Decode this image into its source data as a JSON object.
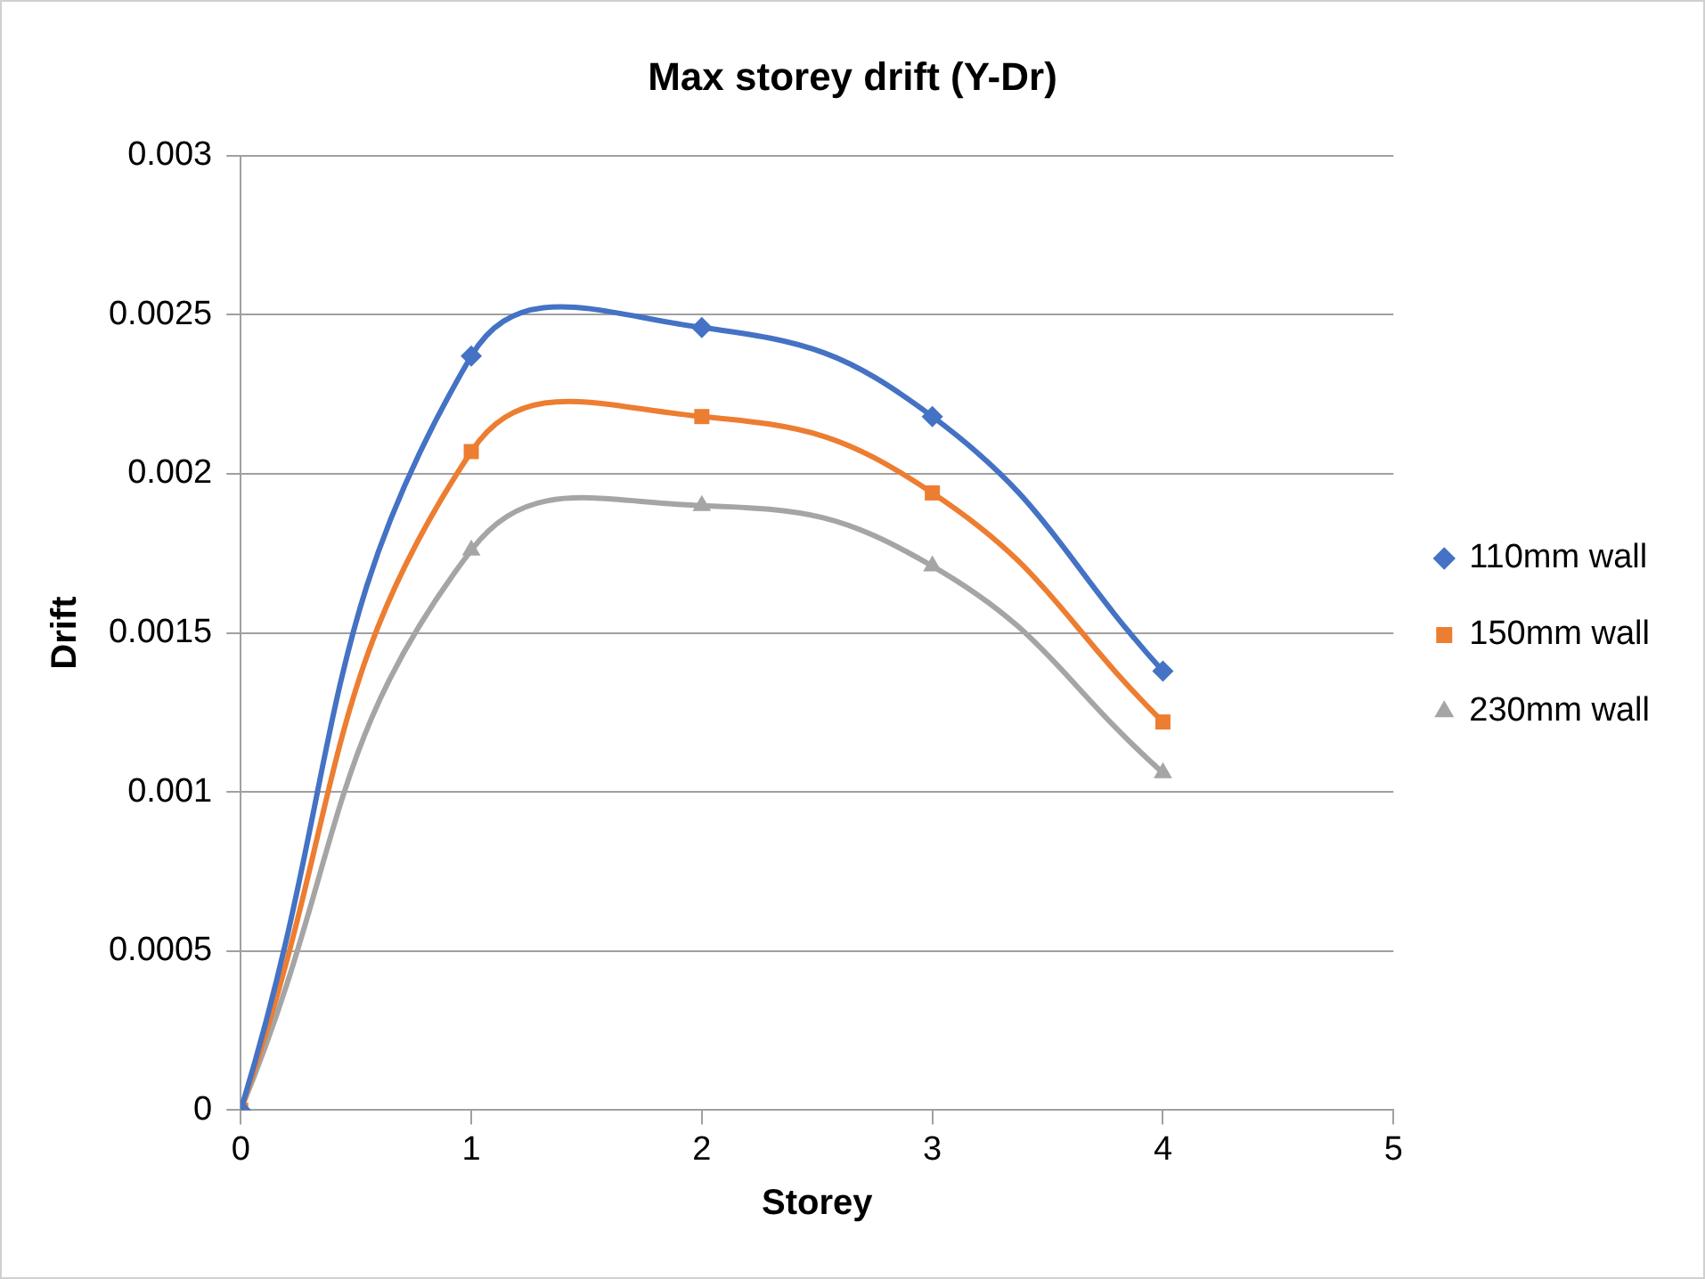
{
  "chart_data": {
    "type": "line",
    "title": "Max storey drift (Y-Dr)",
    "xlabel": "Storey",
    "ylabel": "Drift",
    "x": [
      0,
      1,
      2,
      3,
      4
    ],
    "series": [
      {
        "name": "110mm wall",
        "color": "#4472c4",
        "marker": "diamond",
        "values": [
          0,
          0.00237,
          0.00246,
          0.00218,
          0.00138
        ]
      },
      {
        "name": "150mm wall",
        "color": "#ed7d31",
        "marker": "square",
        "values": [
          0,
          0.00207,
          0.00218,
          0.00194,
          0.00122
        ]
      },
      {
        "name": "230mm wall",
        "color": "#a5a5a5",
        "marker": "triangle",
        "values": [
          0,
          0.00176,
          0.0019,
          0.00171,
          0.00106
        ]
      }
    ],
    "xlim": [
      0,
      5
    ],
    "xticks": [
      0,
      1,
      2,
      3,
      4,
      5
    ],
    "ylim": [
      0,
      0.003
    ],
    "yticks": [
      0,
      0.0005,
      0.001,
      0.0015,
      0.002,
      0.0025,
      0.003
    ],
    "grid": "y",
    "legend": "right"
  }
}
